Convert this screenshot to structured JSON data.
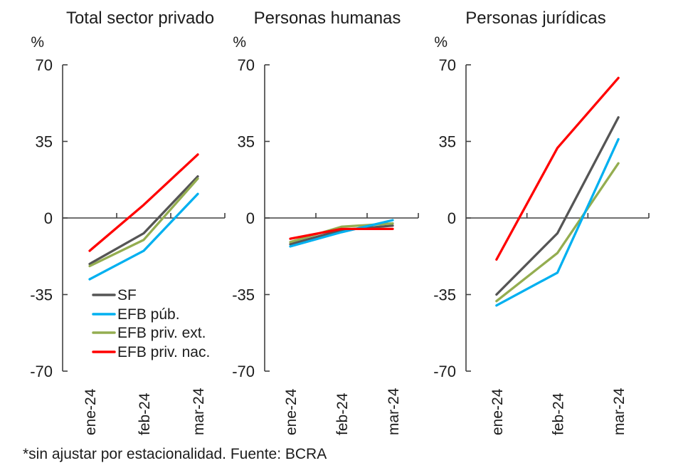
{
  "figure": {
    "y_unit": "%",
    "footer": "*sin ajustar por estacionalidad. Fuente: BCRA"
  },
  "colors": {
    "axis": "#404040",
    "text": "#1c1c1c",
    "sf": "#555555",
    "efb_pub": "#00b0f0",
    "efb_priv_ext": "#94ad50",
    "efb_priv_nac": "#ff0000"
  },
  "legend": {
    "position": "inside-bottom-left-panel-1",
    "entries": [
      "SF",
      "EFB púb.",
      "EFB priv. ext.",
      "EFB priv. nac."
    ]
  },
  "chart_data": [
    {
      "type": "line",
      "title": "Total sector privado",
      "ylabel": "%",
      "ylim": [
        -70,
        70
      ],
      "yticks": [
        70,
        35,
        0,
        -35,
        -70
      ],
      "categories": [
        "ene-24",
        "feb-24",
        "mar-24"
      ],
      "grid": false,
      "show_legend": true,
      "series": [
        {
          "name": "SF",
          "color": "#555555",
          "values": [
            -21,
            -7,
            19
          ]
        },
        {
          "name": "EFB púb.",
          "color": "#00b0f0",
          "values": [
            -28,
            -15,
            11
          ]
        },
        {
          "name": "EFB priv. ext.",
          "color": "#94ad50",
          "values": [
            -22,
            -10,
            18
          ]
        },
        {
          "name": "EFB priv. nac.",
          "color": "#ff0000",
          "values": [
            -15,
            6,
            29
          ]
        }
      ]
    },
    {
      "type": "line",
      "title": "Personas humanas",
      "ylabel": "%",
      "ylim": [
        -70,
        70
      ],
      "yticks": [
        70,
        35,
        0,
        -35,
        -70
      ],
      "categories": [
        "ene-24",
        "feb-24",
        "mar-24"
      ],
      "grid": false,
      "show_legend": false,
      "series": [
        {
          "name": "SF",
          "color": "#555555",
          "values": [
            -12,
            -5.5,
            -3.5
          ]
        },
        {
          "name": "EFB púb.",
          "color": "#00b0f0",
          "values": [
            -13,
            -6.5,
            -1
          ]
        },
        {
          "name": "EFB priv. ext.",
          "color": "#94ad50",
          "values": [
            -11,
            -4,
            -2.5
          ]
        },
        {
          "name": "EFB priv. nac.",
          "color": "#ff0000",
          "values": [
            -9.5,
            -5,
            -5
          ]
        }
      ]
    },
    {
      "type": "line",
      "title": "Personas jurídicas",
      "ylabel": "%",
      "ylim": [
        -70,
        70
      ],
      "yticks": [
        70,
        35,
        0,
        -35,
        -70
      ],
      "categories": [
        "ene-24",
        "feb-24",
        "mar-24"
      ],
      "grid": false,
      "show_legend": false,
      "series": [
        {
          "name": "SF",
          "color": "#555555",
          "values": [
            -35,
            -7,
            46
          ]
        },
        {
          "name": "EFB púb.",
          "color": "#00b0f0",
          "values": [
            -40,
            -25,
            36
          ]
        },
        {
          "name": "EFB priv. ext.",
          "color": "#94ad50",
          "values": [
            -38,
            -16,
            25
          ]
        },
        {
          "name": "EFB priv. nac.",
          "color": "#ff0000",
          "values": [
            -19,
            32,
            64
          ]
        }
      ]
    }
  ]
}
